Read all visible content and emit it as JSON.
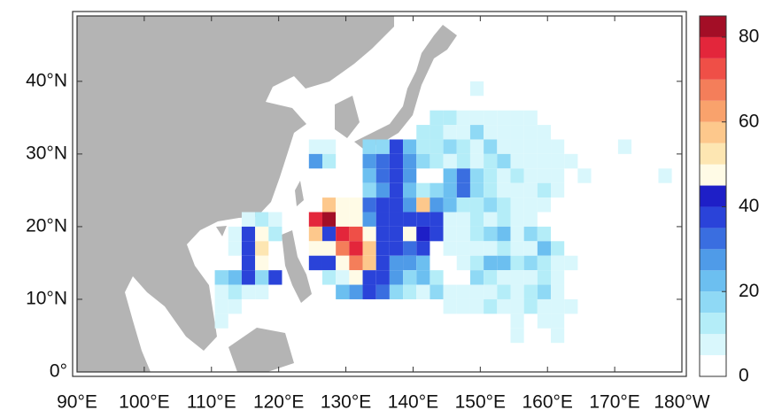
{
  "chart_data": {
    "type": "gridmap",
    "xlim": [
      90,
      180
    ],
    "ylim": [
      0,
      49
    ],
    "xticks": [
      {
        "value": 90,
        "label": "90°E"
      },
      {
        "value": 100,
        "label": "100°E"
      },
      {
        "value": 110,
        "label": "110°E"
      },
      {
        "value": 120,
        "label": "120°E"
      },
      {
        "value": 130,
        "label": "130°E"
      },
      {
        "value": 140,
        "label": "140°E"
      },
      {
        "value": 150,
        "label": "150°E"
      },
      {
        "value": 160,
        "label": "160°E"
      },
      {
        "value": 170,
        "label": "170°E"
      },
      {
        "value": 180,
        "label": "180°W"
      }
    ],
    "yticks": [
      {
        "value": 0,
        "label": "0°"
      },
      {
        "value": 10,
        "label": "10°N"
      },
      {
        "value": 20,
        "label": "20°N"
      },
      {
        "value": 30,
        "label": "30°N"
      },
      {
        "value": 40,
        "label": "40°N"
      }
    ],
    "cell_size": 2,
    "land_color": "#b4b4b4",
    "colorbar": {
      "lim": [
        0,
        85
      ],
      "ticks": [
        0,
        20,
        40,
        60,
        80
      ],
      "step": 5,
      "colors": [
        "#ffffff",
        "#d9f7fc",
        "#b4edf8",
        "#8fd9f5",
        "#6cbff0",
        "#4f9be8",
        "#3a6ee0",
        "#2a43d9",
        "#1e1fc7",
        "#fffbe6",
        "#fde6b2",
        "#fdc88c",
        "#f9a26c",
        "#f47e5a",
        "#ef4f47",
        "#e3263b",
        "#a30e26"
      ]
    },
    "cells": [
      [
        149.5,
        39,
        6
      ],
      [
        143.5,
        35,
        10
      ],
      [
        145.5,
        35,
        10
      ],
      [
        147.5,
        35,
        6
      ],
      [
        149.5,
        35,
        6
      ],
      [
        151.5,
        35,
        6
      ],
      [
        153.5,
        35,
        6
      ],
      [
        155.5,
        35,
        6
      ],
      [
        157.5,
        35,
        6
      ],
      [
        141.5,
        33,
        12
      ],
      [
        143.5,
        33,
        10
      ],
      [
        145.5,
        33,
        6
      ],
      [
        147.5,
        33,
        6
      ],
      [
        149.5,
        33,
        16
      ],
      [
        151.5,
        33,
        6
      ],
      [
        153.5,
        33,
        6
      ],
      [
        155.5,
        33,
        6
      ],
      [
        157.5,
        33,
        6
      ],
      [
        159.5,
        33,
        6
      ],
      [
        125.5,
        31,
        6
      ],
      [
        127.5,
        31,
        6
      ],
      [
        133.5,
        31,
        16
      ],
      [
        135.5,
        31,
        16
      ],
      [
        137.5,
        31,
        37
      ],
      [
        139.5,
        31,
        21
      ],
      [
        141.5,
        31,
        12
      ],
      [
        143.5,
        31,
        10
      ],
      [
        145.5,
        31,
        16
      ],
      [
        147.5,
        31,
        10
      ],
      [
        149.5,
        31,
        6
      ],
      [
        151.5,
        31,
        16
      ],
      [
        153.5,
        31,
        8
      ],
      [
        155.5,
        31,
        6
      ],
      [
        157.5,
        31,
        6
      ],
      [
        159.5,
        31,
        6
      ],
      [
        161.5,
        31,
        6
      ],
      [
        171.5,
        31,
        6
      ],
      [
        125.5,
        29,
        26
      ],
      [
        127.5,
        29,
        12
      ],
      [
        133.5,
        29,
        26
      ],
      [
        135.5,
        29,
        31
      ],
      [
        137.5,
        29,
        37
      ],
      [
        139.5,
        29,
        26
      ],
      [
        141.5,
        29,
        16
      ],
      [
        143.5,
        29,
        12
      ],
      [
        145.5,
        29,
        8
      ],
      [
        147.5,
        29,
        10
      ],
      [
        149.5,
        29,
        8
      ],
      [
        151.5,
        29,
        10
      ],
      [
        153.5,
        29,
        16
      ],
      [
        155.5,
        29,
        8
      ],
      [
        157.5,
        29,
        6
      ],
      [
        159.5,
        29,
        6
      ],
      [
        161.5,
        29,
        8
      ],
      [
        163.5,
        29,
        6
      ],
      [
        133.5,
        27,
        21
      ],
      [
        135.5,
        27,
        31
      ],
      [
        137.5,
        27,
        37
      ],
      [
        139.5,
        27,
        26
      ],
      [
        145.5,
        27,
        21
      ],
      [
        147.5,
        27,
        31
      ],
      [
        149.5,
        27,
        16
      ],
      [
        151.5,
        27,
        10
      ],
      [
        153.5,
        27,
        8
      ],
      [
        155.5,
        27,
        12
      ],
      [
        157.5,
        27,
        8
      ],
      [
        159.5,
        27,
        6
      ],
      [
        161.5,
        27,
        6
      ],
      [
        165.5,
        27,
        6
      ],
      [
        177.5,
        27,
        6
      ],
      [
        133.5,
        25,
        16
      ],
      [
        135.5,
        25,
        26
      ],
      [
        137.5,
        25,
        38
      ],
      [
        139.5,
        25,
        21
      ],
      [
        141.5,
        25,
        10
      ],
      [
        143.5,
        25,
        16
      ],
      [
        145.5,
        25,
        21
      ],
      [
        147.5,
        25,
        31
      ],
      [
        149.5,
        25,
        16
      ],
      [
        151.5,
        25,
        10
      ],
      [
        153.5,
        25,
        8
      ],
      [
        155.5,
        25,
        6
      ],
      [
        157.5,
        25,
        8
      ],
      [
        159.5,
        25,
        10
      ],
      [
        161.5,
        25,
        6
      ],
      [
        127.5,
        23,
        57
      ],
      [
        129.5,
        23,
        47
      ],
      [
        131.5,
        23,
        47
      ],
      [
        133.5,
        23,
        31
      ],
      [
        135.5,
        23,
        38
      ],
      [
        137.5,
        23,
        38
      ],
      [
        139.5,
        23,
        26
      ],
      [
        141.5,
        23,
        57
      ],
      [
        143.5,
        23,
        26
      ],
      [
        145.5,
        23,
        21
      ],
      [
        147.5,
        23,
        12
      ],
      [
        149.5,
        23,
        10
      ],
      [
        151.5,
        23,
        16
      ],
      [
        153.5,
        23,
        10
      ],
      [
        155.5,
        23,
        6
      ],
      [
        157.5,
        23,
        8
      ],
      [
        159.5,
        23,
        6
      ],
      [
        115.5,
        21,
        6
      ],
      [
        117.5,
        21,
        10
      ],
      [
        119.5,
        21,
        8
      ],
      [
        125.5,
        21,
        77
      ],
      [
        127.5,
        21,
        83
      ],
      [
        129.5,
        21,
        47
      ],
      [
        131.5,
        21,
        47
      ],
      [
        133.5,
        21,
        26
      ],
      [
        135.5,
        21,
        38
      ],
      [
        137.5,
        21,
        38
      ],
      [
        139.5,
        21,
        38
      ],
      [
        141.5,
        21,
        38
      ],
      [
        143.5,
        21,
        38
      ],
      [
        145.5,
        21,
        6
      ],
      [
        147.5,
        21,
        8
      ],
      [
        149.5,
        21,
        10
      ],
      [
        151.5,
        21,
        8
      ],
      [
        153.5,
        21,
        12
      ],
      [
        155.5,
        21,
        8
      ],
      [
        157.5,
        21,
        6
      ],
      [
        113.5,
        19,
        6
      ],
      [
        115.5,
        19,
        37
      ],
      [
        117.5,
        19,
        47
      ],
      [
        119.5,
        19,
        10
      ],
      [
        125.5,
        19,
        57
      ],
      [
        127.5,
        19,
        38
      ],
      [
        129.5,
        19,
        77
      ],
      [
        131.5,
        19,
        72
      ],
      [
        133.5,
        19,
        47
      ],
      [
        135.5,
        19,
        38
      ],
      [
        137.5,
        19,
        38
      ],
      [
        139.5,
        19,
        47
      ],
      [
        141.5,
        19,
        42
      ],
      [
        143.5,
        19,
        38
      ],
      [
        145.5,
        19,
        8
      ],
      [
        147.5,
        19,
        6
      ],
      [
        149.5,
        19,
        10
      ],
      [
        151.5,
        19,
        16
      ],
      [
        153.5,
        19,
        21
      ],
      [
        155.5,
        19,
        6
      ],
      [
        157.5,
        19,
        16
      ],
      [
        159.5,
        19,
        10
      ],
      [
        113.5,
        17,
        6
      ],
      [
        115.5,
        17,
        37
      ],
      [
        117.5,
        17,
        52
      ],
      [
        125.5,
        17,
        47
      ],
      [
        127.5,
        17,
        47
      ],
      [
        129.5,
        17,
        67
      ],
      [
        131.5,
        17,
        77
      ],
      [
        133.5,
        17,
        57
      ],
      [
        135.5,
        17,
        38
      ],
      [
        137.5,
        17,
        37
      ],
      [
        139.5,
        17,
        31
      ],
      [
        141.5,
        17,
        37
      ],
      [
        145.5,
        17,
        8
      ],
      [
        147.5,
        17,
        6
      ],
      [
        149.5,
        17,
        8
      ],
      [
        151.5,
        17,
        6
      ],
      [
        153.5,
        17,
        10
      ],
      [
        155.5,
        17,
        8
      ],
      [
        157.5,
        17,
        6
      ],
      [
        159.5,
        17,
        21
      ],
      [
        161.5,
        17,
        10
      ],
      [
        115.5,
        15,
        37
      ],
      [
        117.5,
        15,
        47
      ],
      [
        125.5,
        15,
        38
      ],
      [
        127.5,
        15,
        38
      ],
      [
        129.5,
        15,
        47
      ],
      [
        131.5,
        15,
        67
      ],
      [
        133.5,
        15,
        57
      ],
      [
        135.5,
        15,
        38
      ],
      [
        137.5,
        15,
        26
      ],
      [
        139.5,
        15,
        26
      ],
      [
        141.5,
        15,
        21
      ],
      [
        147.5,
        15,
        8
      ],
      [
        149.5,
        15,
        12
      ],
      [
        151.5,
        15,
        21
      ],
      [
        153.5,
        15,
        21
      ],
      [
        155.5,
        15,
        10
      ],
      [
        157.5,
        15,
        16
      ],
      [
        159.5,
        15,
        10
      ],
      [
        161.5,
        15,
        8
      ],
      [
        163.5,
        15,
        6
      ],
      [
        111.5,
        13,
        16
      ],
      [
        113.5,
        13,
        21
      ],
      [
        115.5,
        13,
        37
      ],
      [
        117.5,
        13,
        16
      ],
      [
        119.5,
        13,
        38
      ],
      [
        127.5,
        13,
        10
      ],
      [
        129.5,
        13,
        6
      ],
      [
        131.5,
        13,
        47
      ],
      [
        133.5,
        13,
        38
      ],
      [
        135.5,
        13,
        37
      ],
      [
        137.5,
        13,
        26
      ],
      [
        139.5,
        13,
        16
      ],
      [
        141.5,
        13,
        21
      ],
      [
        143.5,
        13,
        10
      ],
      [
        149.5,
        13,
        16
      ],
      [
        151.5,
        13,
        10
      ],
      [
        153.5,
        13,
        6
      ],
      [
        155.5,
        13,
        8
      ],
      [
        157.5,
        13,
        6
      ],
      [
        159.5,
        13,
        10
      ],
      [
        161.5,
        13,
        6
      ],
      [
        111.5,
        11,
        8
      ],
      [
        113.5,
        11,
        10
      ],
      [
        115.5,
        11,
        6
      ],
      [
        117.5,
        11,
        6
      ],
      [
        129.5,
        11,
        21
      ],
      [
        131.5,
        11,
        26
      ],
      [
        133.5,
        11,
        37
      ],
      [
        135.5,
        11,
        31
      ],
      [
        137.5,
        11,
        16
      ],
      [
        139.5,
        11,
        10
      ],
      [
        141.5,
        11,
        8
      ],
      [
        143.5,
        11,
        16
      ],
      [
        145.5,
        11,
        8
      ],
      [
        147.5,
        11,
        6
      ],
      [
        149.5,
        11,
        8
      ],
      [
        151.5,
        11,
        6
      ],
      [
        153.5,
        11,
        10
      ],
      [
        155.5,
        11,
        8
      ],
      [
        157.5,
        11,
        10
      ],
      [
        159.5,
        11,
        16
      ],
      [
        161.5,
        11,
        6
      ],
      [
        111.5,
        9,
        6
      ],
      [
        113.5,
        9,
        6
      ],
      [
        145.5,
        9,
        6
      ],
      [
        147.5,
        9,
        8
      ],
      [
        149.5,
        9,
        6
      ],
      [
        151.5,
        9,
        10
      ],
      [
        153.5,
        9,
        8
      ],
      [
        155.5,
        9,
        6
      ],
      [
        157.5,
        9,
        10
      ],
      [
        159.5,
        9,
        8
      ],
      [
        161.5,
        9,
        6
      ],
      [
        163.5,
        9,
        6
      ],
      [
        111.5,
        7,
        6
      ],
      [
        155.5,
        7,
        6
      ],
      [
        159.5,
        7,
        6
      ],
      [
        161.5,
        7,
        6
      ],
      [
        155.5,
        5,
        6
      ],
      [
        161.5,
        5,
        6
      ]
    ]
  }
}
